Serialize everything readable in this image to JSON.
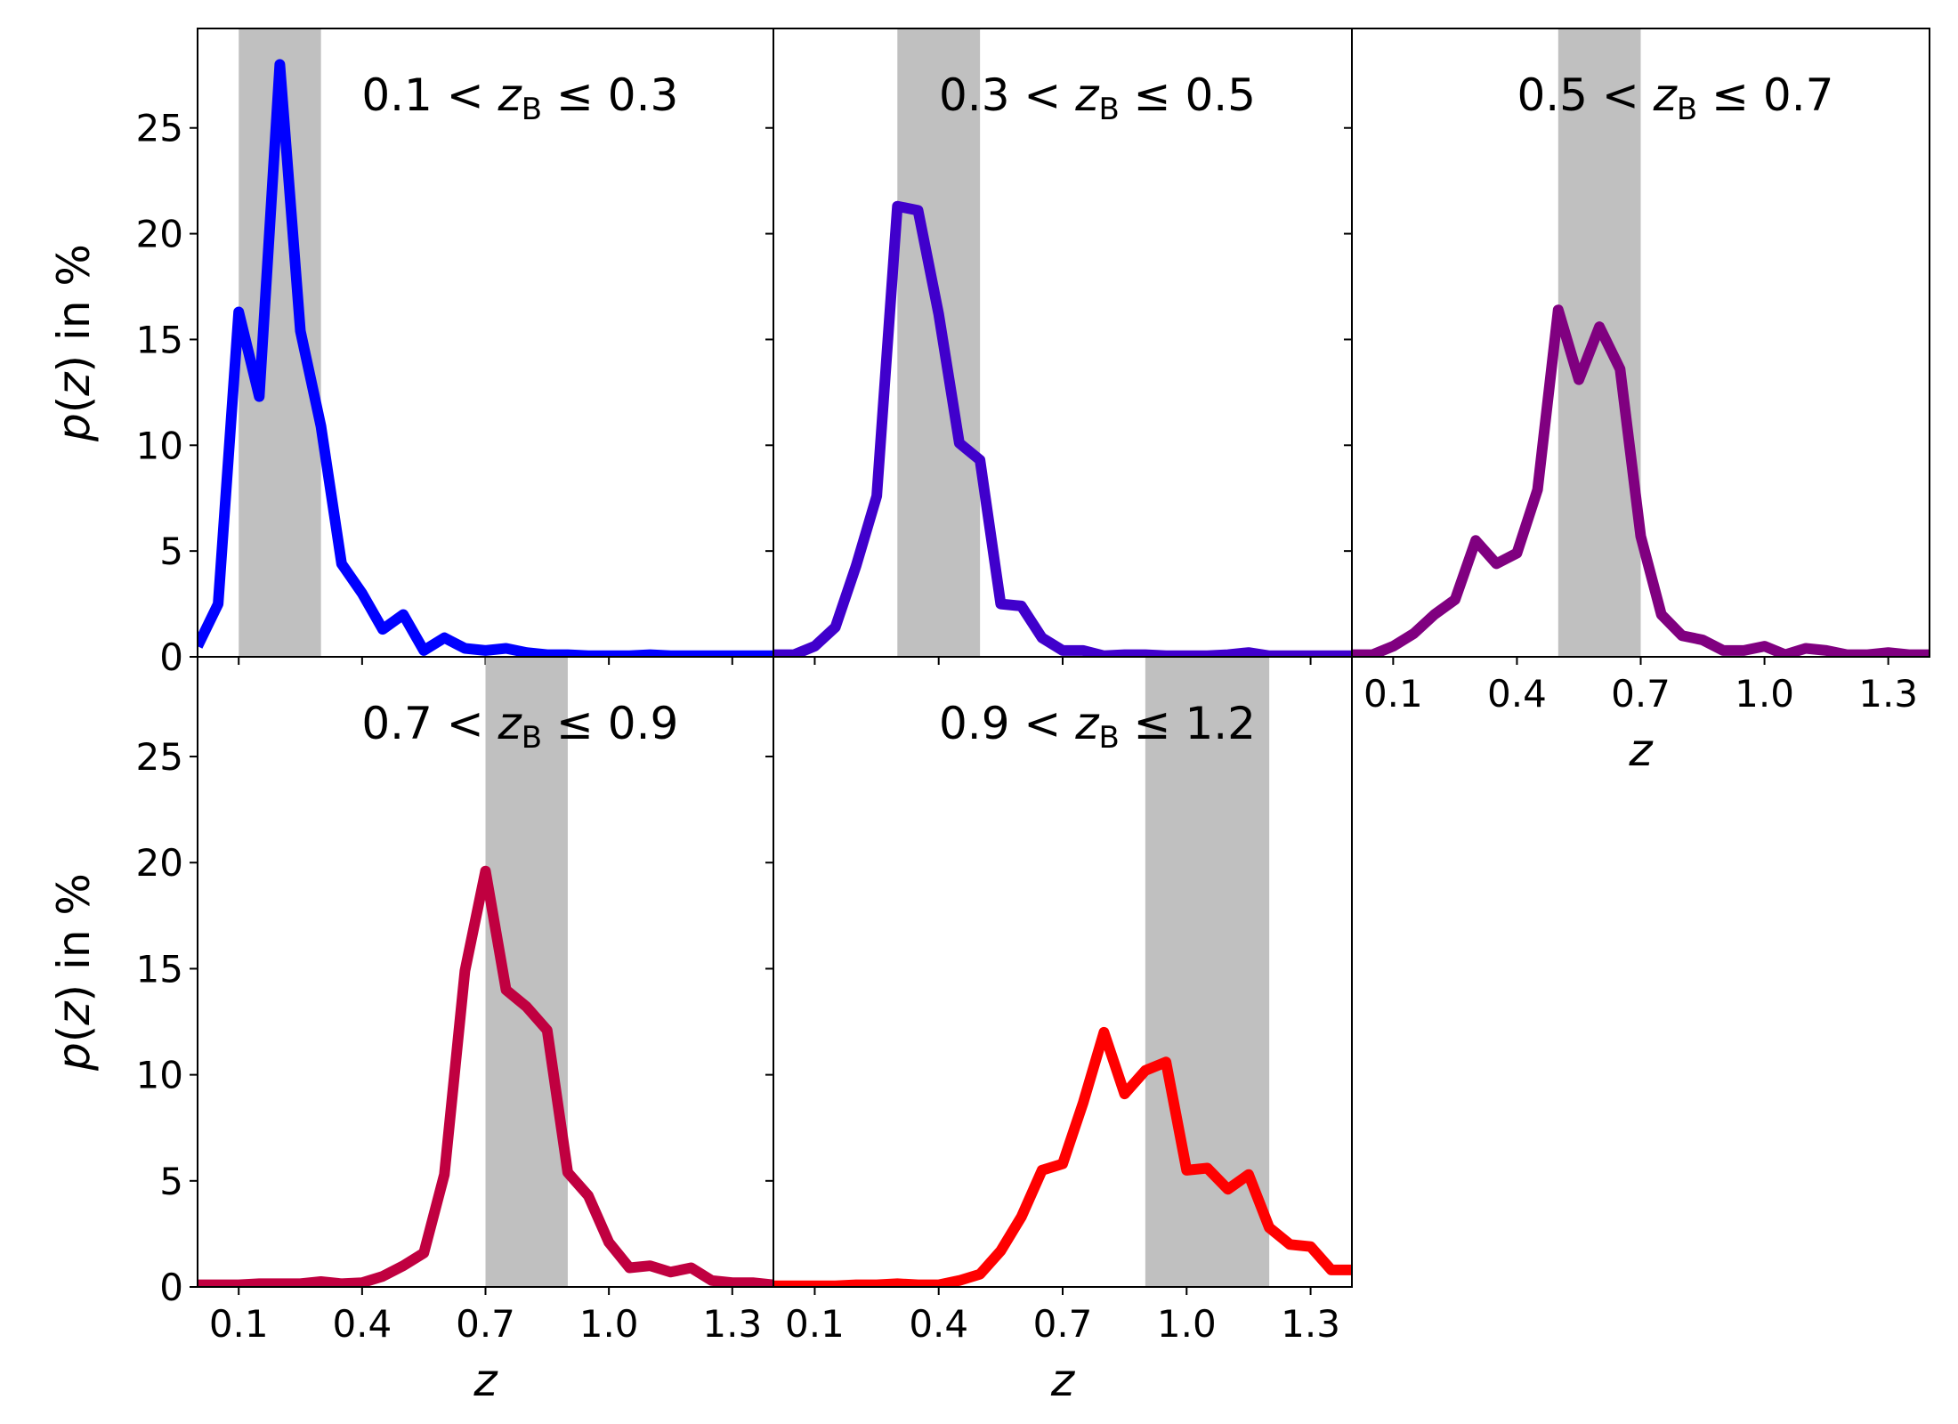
{
  "chart_data": [
    {
      "type": "line",
      "panel_id": "p1",
      "title": {
        "lower": "0.1",
        "var": "z",
        "sub": "B",
        "upper": "0.3"
      },
      "xlabel": "",
      "ylabel": "p(z) in %",
      "xlim": [
        0.0,
        1.4
      ],
      "ylim": [
        0,
        29.7
      ],
      "xticks": [
        "0.1",
        "0.4",
        "0.7",
        "1.0",
        "1.3"
      ],
      "yticks": [
        "0",
        "5",
        "10",
        "15",
        "20",
        "25"
      ],
      "show_xticklabels": false,
      "show_yticklabels": true,
      "band": [
        0.1,
        0.3
      ],
      "color": "#0000ff",
      "series": [
        {
          "x": [
            0.0,
            0.05,
            0.1,
            0.15,
            0.2,
            0.25,
            0.3,
            0.35,
            0.4,
            0.45,
            0.5,
            0.55,
            0.6,
            0.65,
            0.7,
            0.75,
            0.8,
            0.85,
            0.9,
            0.95,
            1.0,
            1.05,
            1.1,
            1.15,
            1.2,
            1.25,
            1.3,
            1.35,
            1.4
          ],
          "y": [
            0.5,
            2.5,
            16.3,
            12.3,
            28.0,
            15.4,
            10.9,
            4.4,
            3.0,
            1.3,
            2.0,
            0.3,
            0.9,
            0.4,
            0.3,
            0.4,
            0.2,
            0.1,
            0.1,
            0.05,
            0.05,
            0.05,
            0.1,
            0.05,
            0.05,
            0.05,
            0.05,
            0.05,
            0.05
          ]
        }
      ]
    },
    {
      "type": "line",
      "panel_id": "p2",
      "title": {
        "lower": "0.3",
        "var": "z",
        "sub": "B",
        "upper": "0.5"
      },
      "xlabel": "",
      "ylabel": "",
      "xlim": [
        0.0,
        1.4
      ],
      "ylim": [
        0,
        29.7
      ],
      "xticks": [
        "0.1",
        "0.4",
        "0.7",
        "1.0",
        "1.3"
      ],
      "yticks": [
        "0",
        "5",
        "10",
        "15",
        "20",
        "25"
      ],
      "show_xticklabels": false,
      "show_yticklabels": false,
      "band": [
        0.3,
        0.5
      ],
      "color": "#4000cc",
      "series": [
        {
          "x": [
            0.0,
            0.05,
            0.1,
            0.15,
            0.2,
            0.25,
            0.3,
            0.35,
            0.4,
            0.45,
            0.5,
            0.55,
            0.6,
            0.65,
            0.7,
            0.75,
            0.8,
            0.85,
            0.9,
            0.95,
            1.0,
            1.05,
            1.1,
            1.15,
            1.2,
            1.25,
            1.3,
            1.35,
            1.4
          ],
          "y": [
            0.1,
            0.1,
            0.5,
            1.4,
            4.3,
            7.6,
            21.3,
            21.1,
            16.2,
            10.1,
            9.3,
            2.5,
            2.4,
            0.9,
            0.3,
            0.3,
            0.05,
            0.1,
            0.1,
            0.05,
            0.05,
            0.05,
            0.1,
            0.2,
            0.05,
            0.05,
            0.05,
            0.05,
            0.05
          ]
        }
      ]
    },
    {
      "type": "line",
      "panel_id": "p3",
      "title": {
        "lower": "0.5",
        "var": "z",
        "sub": "B",
        "upper": "0.7"
      },
      "xlabel": "z",
      "ylabel": "",
      "xlim": [
        0.0,
        1.4
      ],
      "ylim": [
        0,
        29.7
      ],
      "xticks": [
        "0.1",
        "0.4",
        "0.7",
        "1.0",
        "1.3"
      ],
      "yticks": [
        "0",
        "5",
        "10",
        "15",
        "20",
        "25"
      ],
      "show_xticklabels": true,
      "show_yticklabels": false,
      "band": [
        0.5,
        0.7
      ],
      "color": "#800080",
      "series": [
        {
          "x": [
            0.0,
            0.05,
            0.1,
            0.15,
            0.2,
            0.25,
            0.3,
            0.35,
            0.4,
            0.45,
            0.5,
            0.55,
            0.6,
            0.65,
            0.7,
            0.75,
            0.8,
            0.85,
            0.9,
            0.95,
            1.0,
            1.05,
            1.1,
            1.15,
            1.2,
            1.25,
            1.3,
            1.35,
            1.4
          ],
          "y": [
            0.1,
            0.1,
            0.5,
            1.1,
            2.0,
            2.7,
            5.5,
            4.4,
            4.9,
            7.9,
            16.4,
            13.1,
            15.6,
            13.6,
            5.7,
            2.0,
            1.0,
            0.8,
            0.3,
            0.3,
            0.5,
            0.1,
            0.4,
            0.3,
            0.1,
            0.1,
            0.2,
            0.1,
            0.1
          ]
        }
      ]
    },
    {
      "type": "line",
      "panel_id": "p4",
      "title": {
        "lower": "0.7",
        "var": "z",
        "sub": "B",
        "upper": "0.9"
      },
      "xlabel": "z",
      "ylabel": "p(z) in %",
      "xlim": [
        0.0,
        1.4
      ],
      "ylim": [
        0,
        29.7
      ],
      "xticks": [
        "0.1",
        "0.4",
        "0.7",
        "1.0",
        "1.3"
      ],
      "yticks": [
        "0",
        "5",
        "10",
        "15",
        "20",
        "25"
      ],
      "show_xticklabels": true,
      "show_yticklabels": true,
      "band": [
        0.7,
        0.9
      ],
      "color": "#c00040",
      "series": [
        {
          "x": [
            0.0,
            0.05,
            0.1,
            0.15,
            0.2,
            0.25,
            0.3,
            0.35,
            0.4,
            0.45,
            0.5,
            0.55,
            0.6,
            0.65,
            0.7,
            0.75,
            0.8,
            0.85,
            0.9,
            0.95,
            1.0,
            1.05,
            1.1,
            1.15,
            1.2,
            1.25,
            1.3,
            1.35,
            1.4
          ],
          "y": [
            0.1,
            0.1,
            0.1,
            0.15,
            0.15,
            0.15,
            0.25,
            0.15,
            0.2,
            0.5,
            1.0,
            1.6,
            5.3,
            14.9,
            19.6,
            14.0,
            13.2,
            12.1,
            5.4,
            4.3,
            2.1,
            0.9,
            1.0,
            0.7,
            0.9,
            0.3,
            0.2,
            0.2,
            0.1
          ]
        }
      ]
    },
    {
      "type": "line",
      "panel_id": "p5",
      "title": {
        "lower": "0.9",
        "var": "z",
        "sub": "B",
        "upper": "1.2"
      },
      "xlabel": "z",
      "ylabel": "",
      "xlim": [
        0.0,
        1.4
      ],
      "ylim": [
        0,
        29.7
      ],
      "xticks": [
        "0.1",
        "0.4",
        "0.7",
        "1.0",
        "1.3"
      ],
      "yticks": [
        "0",
        "5",
        "10",
        "15",
        "20",
        "25"
      ],
      "show_xticklabels": true,
      "show_yticklabels": false,
      "band": [
        0.9,
        1.2
      ],
      "color": "#ff0000",
      "series": [
        {
          "x": [
            0.0,
            0.05,
            0.1,
            0.15,
            0.2,
            0.25,
            0.3,
            0.35,
            0.4,
            0.45,
            0.5,
            0.55,
            0.6,
            0.65,
            0.7,
            0.75,
            0.8,
            0.85,
            0.9,
            0.95,
            1.0,
            1.05,
            1.1,
            1.15,
            1.2,
            1.25,
            1.3,
            1.35,
            1.4
          ],
          "y": [
            0.05,
            0.05,
            0.05,
            0.05,
            0.1,
            0.1,
            0.15,
            0.1,
            0.1,
            0.3,
            0.6,
            1.7,
            3.3,
            5.5,
            5.8,
            8.7,
            12.0,
            9.1,
            10.2,
            10.6,
            5.5,
            5.6,
            4.6,
            5.3,
            2.8,
            2.0,
            1.9,
            0.8,
            0.8
          ]
        }
      ]
    }
  ],
  "colors": {
    "band": "#c0c0c0",
    "axes": "#000000",
    "background": "#ffffff"
  }
}
